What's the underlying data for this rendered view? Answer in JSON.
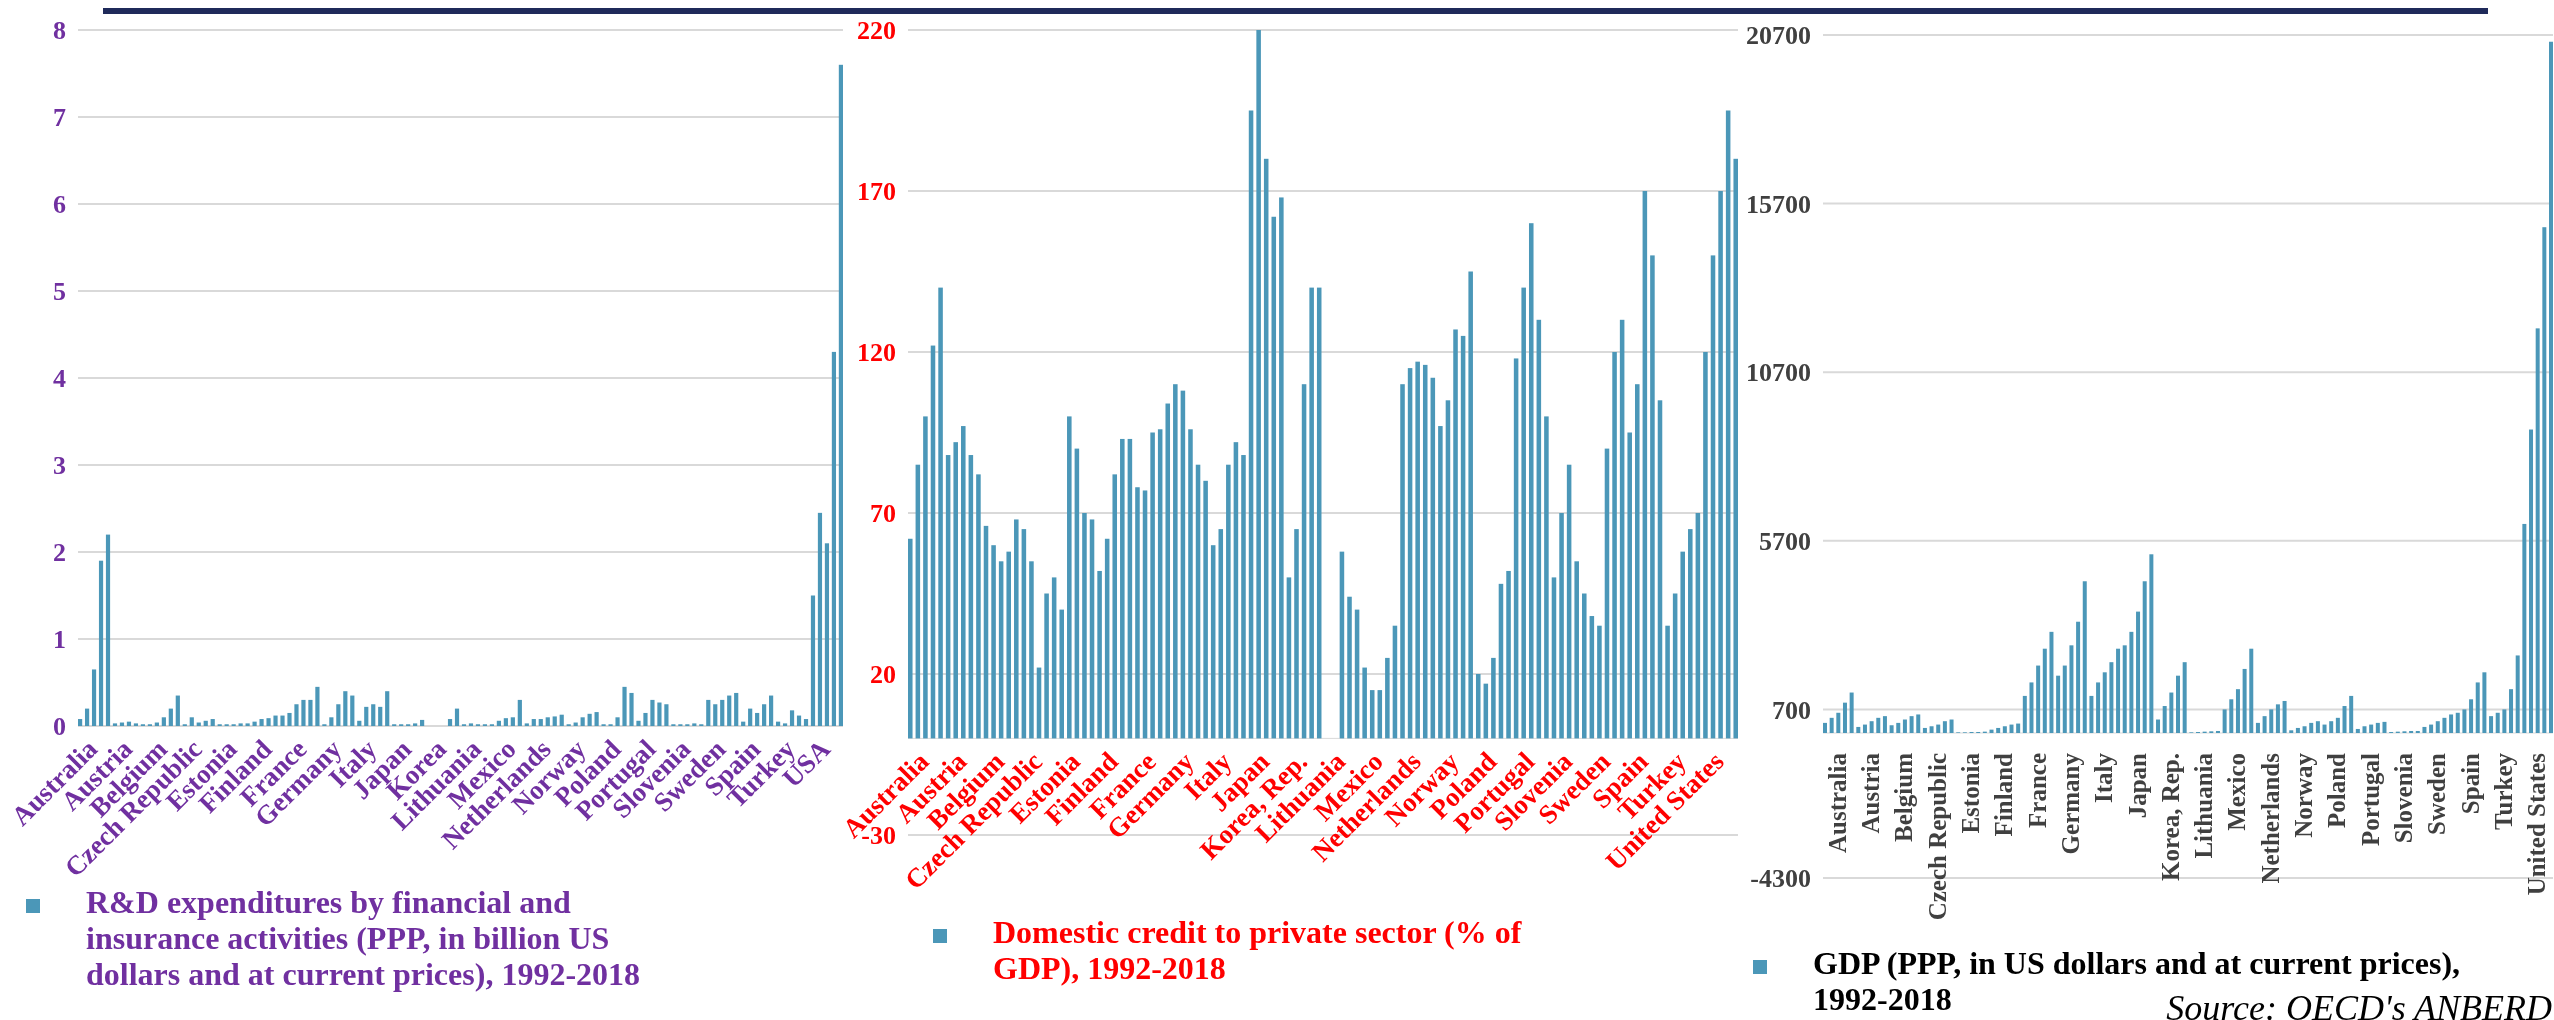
{
  "chart_data": [
    {
      "type": "bar",
      "categories": [
        null,
        null,
        "Australia",
        null,
        null,
        null,
        null,
        "Austria",
        null,
        null,
        null,
        null,
        "Belgium",
        null,
        null,
        null,
        null,
        "Czech Republic",
        null,
        null,
        null,
        null,
        "Estonia",
        null,
        null,
        null,
        null,
        "Finland",
        null,
        null,
        null,
        null,
        "France",
        null,
        null,
        null,
        null,
        "Germany",
        null,
        null,
        null,
        null,
        "Italy",
        null,
        null,
        null,
        null,
        "Japan",
        null,
        null,
        null,
        null,
        "Korea",
        null,
        null,
        null,
        null,
        "Lithuania",
        null,
        null,
        null,
        null,
        "Mexico",
        null,
        null,
        null,
        null,
        "Netherlands",
        null,
        null,
        null,
        null,
        "Norway",
        null,
        null,
        null,
        null,
        "Poland",
        null,
        null,
        null,
        null,
        "Portugal",
        null,
        null,
        null,
        null,
        "Slovenia",
        null,
        null,
        null,
        null,
        "Sweden",
        null,
        null,
        null,
        null,
        "Spain",
        null,
        null,
        null,
        null,
        "Turkey",
        null,
        null,
        null,
        null,
        "USA",
        null,
        null
      ],
      "series": [
        {
          "name": "R&D expenditures by financial and insurance activities (PPP, in billion US dollars and at current prices), 1992-2018",
          "color": "#4b97b8",
          "values": [
            0.08,
            0.2,
            0.65,
            1.9,
            2.2,
            0.03,
            0.04,
            0.05,
            0.03,
            0.02,
            0.02,
            0.04,
            0.1,
            0.2,
            0.35,
            0.02,
            0.1,
            0.04,
            0.06,
            0.08,
            0.02,
            0.02,
            0.02,
            0.03,
            0.03,
            0.05,
            0.08,
            0.09,
            0.12,
            0.12,
            0.15,
            0.25,
            0.3,
            0.3,
            0.45,
            0.02,
            0.1,
            0.25,
            0.4,
            0.35,
            0.06,
            0.22,
            0.25,
            0.22,
            0.4,
            0.02,
            0.02,
            0.02,
            0.03,
            0.07,
            null,
            null,
            null,
            0.08,
            0.2,
            0.02,
            0.03,
            0.02,
            0.02,
            0.02,
            0.06,
            0.09,
            0.1,
            0.3,
            0.03,
            0.08,
            0.08,
            0.1,
            0.11,
            0.13,
            0.02,
            0.04,
            0.1,
            0.14,
            0.16,
            0.02,
            0.02,
            0.1,
            0.45,
            0.38,
            0.06,
            0.15,
            0.3,
            0.27,
            0.25,
            0.02,
            0.02,
            0.02,
            0.03,
            0.02,
            0.3,
            0.25,
            0.3,
            0.35,
            0.38,
            0.05,
            0.2,
            0.15,
            0.25,
            0.35,
            0.05,
            0.03,
            0.18,
            0.12,
            0.08,
            1.5,
            2.45,
            2.1,
            4.3,
            7.6
          ]
        }
      ],
      "ylim": [
        0,
        8
      ],
      "yticks": [
        0,
        1,
        2,
        3,
        4,
        5,
        6,
        7,
        8
      ],
      "grid": "y",
      "legend": "bottom"
    },
    {
      "type": "bar",
      "categories": [
        null,
        null,
        "Australia",
        null,
        null,
        null,
        null,
        "Austria",
        null,
        null,
        null,
        null,
        "Belgium",
        null,
        null,
        null,
        null,
        "Czech Republic",
        null,
        null,
        null,
        null,
        "Estonia",
        null,
        null,
        null,
        null,
        "Finland",
        null,
        null,
        null,
        null,
        "France",
        null,
        null,
        null,
        null,
        "Germany",
        null,
        null,
        null,
        null,
        "Italy",
        null,
        null,
        null,
        null,
        "Japan",
        null,
        null,
        null,
        null,
        "Korea, Rep.",
        null,
        null,
        null,
        null,
        "Lithuania",
        null,
        null,
        null,
        null,
        "Mexico",
        null,
        null,
        null,
        null,
        "Netherlands",
        null,
        null,
        null,
        null,
        "Norway",
        null,
        null,
        null,
        null,
        "Poland",
        null,
        null,
        null,
        null,
        "Portugal",
        null,
        null,
        null,
        null,
        "Slovenia",
        null,
        null,
        null,
        null,
        "Sweden",
        null,
        null,
        null,
        null,
        "Spain",
        null,
        null,
        null,
        null,
        "Turkey",
        null,
        null,
        null,
        null,
        "United States",
        null,
        null
      ],
      "series": [
        {
          "name": "Domestic credit to private sector (% of GDP), 1992-2018",
          "color": "#4b97b8",
          "values": [
            62,
            85,
            100,
            122,
            140,
            88,
            92,
            97,
            88,
            82,
            66,
            60,
            55,
            58,
            68,
            65,
            55,
            22,
            45,
            50,
            40,
            100,
            90,
            70,
            68,
            52,
            62,
            82,
            93,
            93,
            78,
            77,
            95,
            96,
            104,
            110,
            108,
            96,
            85,
            80,
            60,
            65,
            85,
            92,
            88,
            195,
            220,
            180,
            162,
            168,
            50,
            65,
            110,
            140,
            140,
            null,
            null,
            58,
            44,
            40,
            22,
            15,
            15,
            25,
            35,
            110,
            115,
            117,
            116,
            112,
            97,
            105,
            127,
            125,
            145,
            20,
            17,
            25,
            48,
            52,
            118,
            140,
            160,
            130,
            100,
            50,
            70,
            85,
            55,
            45,
            38,
            35,
            90,
            120,
            130,
            95,
            110,
            170,
            150,
            105,
            35,
            45,
            58,
            65,
            70,
            120,
            150,
            170,
            195,
            180
          ]
        }
      ],
      "ylim": [
        -30,
        220
      ],
      "yticks": [
        -30,
        20,
        70,
        120,
        170,
        220
      ],
      "grid": "y",
      "legend": "bottom"
    },
    {
      "type": "bar",
      "categories": [
        null,
        null,
        "Australia",
        null,
        null,
        null,
        null,
        "Austria",
        null,
        null,
        null,
        null,
        "Belgium",
        null,
        null,
        null,
        null,
        "Czech Republic",
        null,
        null,
        null,
        null,
        "Estonia",
        null,
        null,
        null,
        null,
        "Finland",
        null,
        null,
        null,
        null,
        "France",
        null,
        null,
        null,
        null,
        "Germany",
        null,
        null,
        null,
        null,
        "Italy",
        null,
        null,
        null,
        null,
        "Japan",
        null,
        null,
        null,
        null,
        "Korea, Rep.",
        null,
        null,
        null,
        null,
        "Lithuania",
        null,
        null,
        null,
        null,
        "Mexico",
        null,
        null,
        null,
        null,
        "Netherlands",
        null,
        null,
        null,
        null,
        "Norway",
        null,
        null,
        null,
        null,
        "Poland",
        null,
        null,
        null,
        null,
        "Portugal",
        null,
        null,
        null,
        null,
        "Slovenia",
        null,
        null,
        null,
        null,
        "Sweden",
        null,
        null,
        null,
        null,
        "Spain",
        null,
        null,
        null,
        null,
        "Turkey",
        null,
        null,
        null,
        null,
        "United States",
        null,
        null
      ],
      "series": [
        {
          "name": "GDP (PPP, in US dollars and at current prices), 1992-2018",
          "color": "#4b97b8",
          "values": [
            300,
            450,
            600,
            900,
            1200,
            180,
            250,
            350,
            450,
            500,
            230,
            300,
            400,
            500,
            550,
            150,
            200,
            250,
            350,
            400,
            20,
            20,
            30,
            30,
            40,
            100,
            150,
            200,
            250,
            280,
            1100,
            1500,
            2000,
            2500,
            3000,
            1700,
            2000,
            2600,
            3300,
            4500,
            1100,
            1500,
            1800,
            2100,
            2500,
            2600,
            3000,
            3600,
            4500,
            5300,
            400,
            800,
            1200,
            1700,
            2100,
            20,
            30,
            40,
            50,
            60,
            700,
            1000,
            1300,
            1900,
            2500,
            300,
            500,
            700,
            850,
            950,
            80,
            150,
            200,
            300,
            350,
            250,
            350,
            450,
            800,
            1100,
            120,
            200,
            250,
            300,
            330,
            30,
            40,
            50,
            60,
            60,
            180,
            250,
            350,
            450,
            550,
            600,
            700,
            1000,
            1500,
            1800,
            500,
            600,
            700,
            1300,
            2300,
            6200,
            9000,
            12000,
            15000,
            20500
          ]
        }
      ],
      "ylim": [
        -4300,
        20700
      ],
      "yticks": [
        -4300,
        700,
        5700,
        10700,
        15700,
        20700
      ],
      "grid": "y",
      "legend": "bottom",
      "annotations": [
        "Source: OECD's ANBERD"
      ]
    }
  ]
}
